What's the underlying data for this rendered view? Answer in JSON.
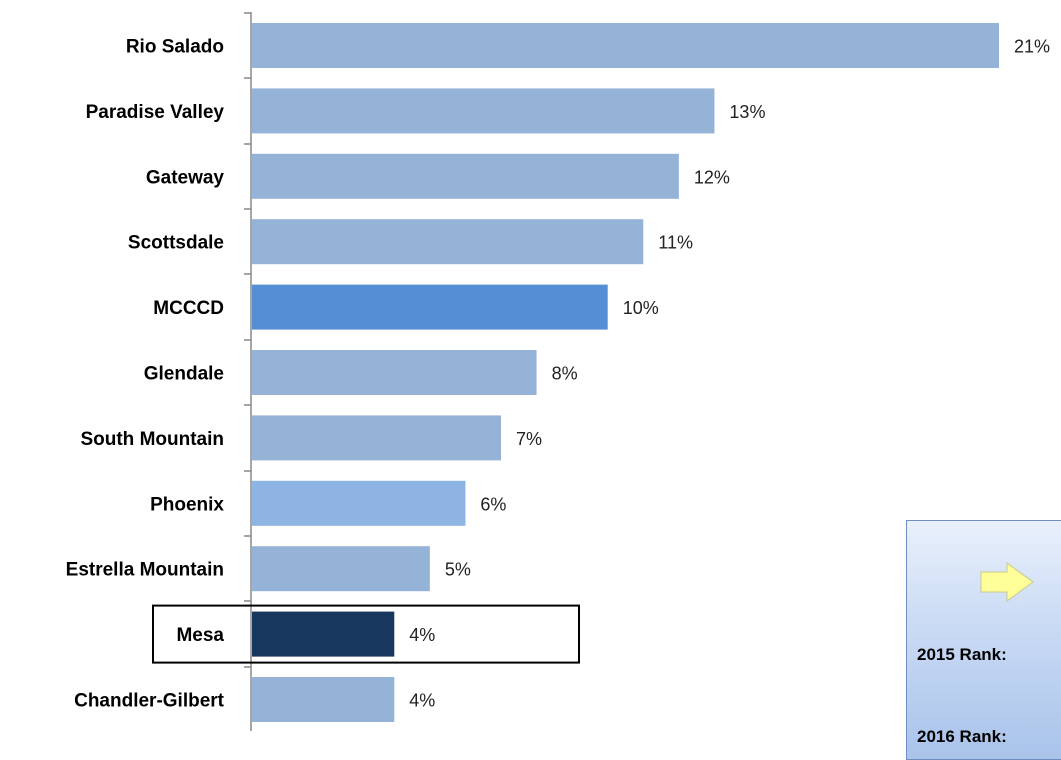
{
  "chart_data": {
    "type": "bar",
    "orientation": "horizontal",
    "categories": [
      "Rio Salado",
      "Paradise Valley",
      "Gateway",
      "Scottsdale",
      "MCCCD",
      "Glendale",
      "South Mountain",
      "Phoenix",
      "Estrella Mountain",
      "Mesa",
      "Chandler-Gilbert"
    ],
    "values": [
      21,
      13,
      12,
      11,
      10,
      8,
      7,
      6,
      5,
      4,
      4
    ],
    "value_labels": [
      "21%",
      "13%",
      "12%",
      "11%",
      "10%",
      "8%",
      "7%",
      "6%",
      "5%",
      "4%",
      "4%"
    ],
    "xlim": [
      0,
      21
    ],
    "grid": false,
    "highlighted_category": "Mesa",
    "colors": {
      "default": "#95b3d7",
      "MCCCD": "#558ed5",
      "Mesa": "#17375e",
      "Phoenix": "#8db4e2"
    }
  },
  "rank_box": {
    "arrow_icon": "right-arrow-icon",
    "rank_2015_label": "2015 Rank:",
    "rank_2016_label": "2016 Rank:"
  }
}
